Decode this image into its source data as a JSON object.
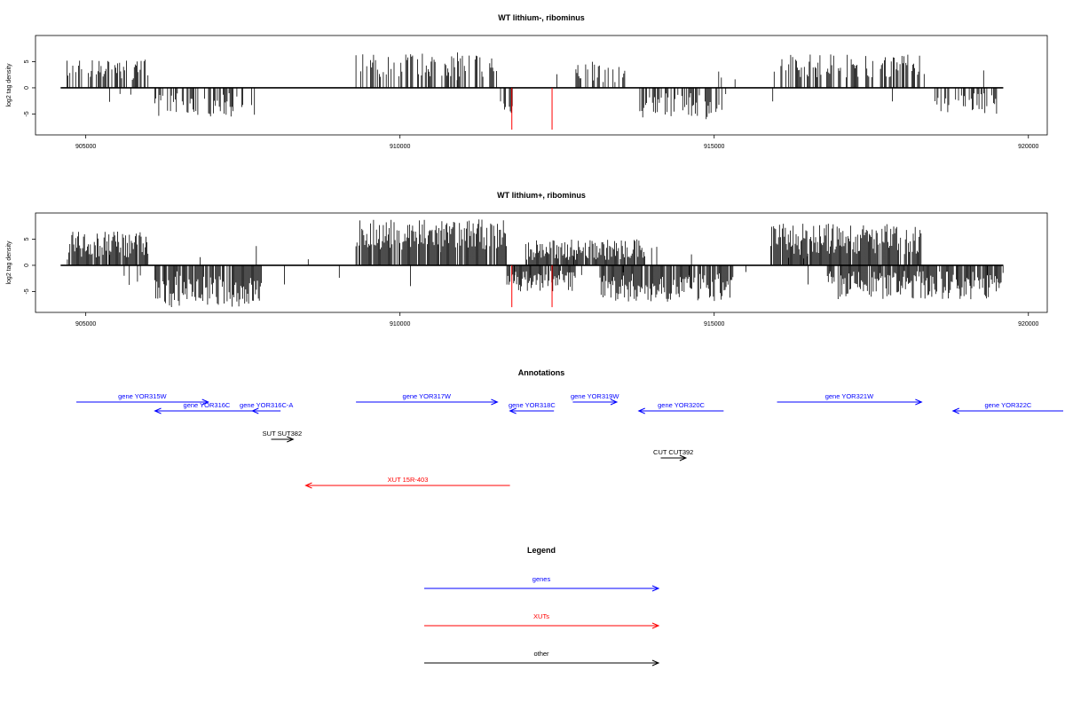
{
  "panels": [
    {
      "title": "WT lithium-, ribominus",
      "ylabel": "log2 tag density",
      "xticks": [
        905000,
        910000,
        915000,
        920000
      ],
      "yticks": [
        5,
        0,
        -5
      ],
      "xlim": [
        904200,
        920300
      ],
      "ylim": [
        -9,
        10
      ],
      "red_spikes": [
        {
          "x": 911780,
          "y": -8.0
        },
        {
          "x": 912420,
          "y": -8.0
        }
      ],
      "profile": [
        {
          "start": 904700,
          "end": 906000,
          "min": 1.5,
          "max": 5.5,
          "dir": 1
        },
        {
          "start": 906100,
          "end": 907700,
          "min": -5.5,
          "max": -1.0,
          "dir": -1
        },
        {
          "start": 909300,
          "end": 911600,
          "min": 2.0,
          "max": 6.8,
          "dir": 1
        },
        {
          "start": 911600,
          "end": 911800,
          "min": -5.0,
          "max": -1.0,
          "dir": -1
        },
        {
          "start": 912800,
          "end": 913600,
          "min": 1.0,
          "max": 5.0,
          "dir": 1
        },
        {
          "start": 913800,
          "end": 915200,
          "min": -6.0,
          "max": -1.0,
          "dir": -1
        },
        {
          "start": 916000,
          "end": 918300,
          "min": 2.0,
          "max": 6.5,
          "dir": 1
        },
        {
          "start": 918500,
          "end": 919500,
          "min": -5.0,
          "max": -1.0,
          "dir": -1
        }
      ],
      "density": 0.55
    },
    {
      "title": "WT lithium+, ribominus",
      "ylabel": "log2 tag density",
      "xticks": [
        905000,
        910000,
        915000,
        920000
      ],
      "yticks": [
        5,
        0,
        -5
      ],
      "xlim": [
        904200,
        920300
      ],
      "ylim": [
        -9,
        10
      ],
      "red_spikes": [
        {
          "x": 911780,
          "y": -8.0
        },
        {
          "x": 912420,
          "y": -8.0
        }
      ],
      "profile": [
        {
          "start": 904700,
          "end": 906000,
          "min": 1.5,
          "max": 6.5,
          "dir": 1
        },
        {
          "start": 906100,
          "end": 907800,
          "min": -8.0,
          "max": -2.0,
          "dir": -1
        },
        {
          "start": 909300,
          "end": 911700,
          "min": 3.0,
          "max": 8.8,
          "dir": 1
        },
        {
          "start": 911700,
          "end": 912800,
          "min": -5.0,
          "max": -1.0,
          "dir": -1
        },
        {
          "start": 912000,
          "end": 913900,
          "min": 1.0,
          "max": 5.0,
          "dir": 1
        },
        {
          "start": 913200,
          "end": 915300,
          "min": -7.0,
          "max": -1.5,
          "dir": -1
        },
        {
          "start": 915900,
          "end": 918300,
          "min": 2.0,
          "max": 8.0,
          "dir": 1
        },
        {
          "start": 916800,
          "end": 919600,
          "min": -6.5,
          "max": -1.0,
          "dir": -1
        }
      ],
      "density": 0.9
    }
  ],
  "annotations": {
    "title": "Annotations",
    "items": [
      {
        "label": "gene YOR315W",
        "start": 904850,
        "end": 906950,
        "strand": "+",
        "type": "gene",
        "row": 0
      },
      {
        "label": "gene YOR316C",
        "start": 906100,
        "end": 907750,
        "strand": "-",
        "type": "gene",
        "row": 1
      },
      {
        "label": "gene YOR316C-A",
        "start": 907650,
        "end": 908100,
        "strand": "-",
        "type": "gene",
        "row": 1
      },
      {
        "label": "gene YOR317W",
        "start": 909300,
        "end": 911550,
        "strand": "+",
        "type": "gene",
        "row": 0
      },
      {
        "label": "gene YOR318C",
        "start": 911750,
        "end": 912450,
        "strand": "-",
        "type": "gene",
        "row": 1
      },
      {
        "label": "gene YOR319W",
        "start": 912750,
        "end": 913450,
        "strand": "+",
        "type": "gene",
        "row": 0
      },
      {
        "label": "gene YOR320C",
        "start": 913800,
        "end": 915150,
        "strand": "-",
        "type": "gene",
        "row": 1
      },
      {
        "label": "gene YOR321W",
        "start": 916000,
        "end": 918300,
        "strand": "+",
        "type": "gene",
        "row": 0
      },
      {
        "label": "gene YOR322C",
        "start": 918800,
        "end": 920600,
        "strand": "-",
        "type": "gene",
        "row": 1
      },
      {
        "label": "SUT SUT382",
        "start": 907950,
        "end": 908300,
        "strand": "+",
        "type": "other",
        "row": 2
      },
      {
        "label": "CUT CUT392",
        "start": 914150,
        "end": 914550,
        "strand": "+",
        "type": "other",
        "row": 3
      },
      {
        "label": "XUT 15R-403",
        "start": 908500,
        "end": 911750,
        "strand": "-",
        "type": "xut",
        "row": 4
      }
    ]
  },
  "legend": {
    "title": "Legend",
    "entries": [
      {
        "label": "genes",
        "color": "#0000ff"
      },
      {
        "label": "XUTs",
        "color": "#ff0000"
      },
      {
        "label": "other",
        "color": "#000000"
      }
    ]
  },
  "colors": {
    "gene": "#0000ff",
    "xut": "#ff0000",
    "other": "#000000",
    "bar": "#000000",
    "spike": "#ff0000"
  },
  "chart_data": [
    {
      "type": "bar",
      "title": "WT lithium-, ribominus",
      "xlabel": "",
      "ylabel": "log2 tag density",
      "xlim": [
        904200,
        920300
      ],
      "ylim": [
        -9,
        10
      ],
      "xticks": [
        905000,
        910000,
        915000,
        920000
      ],
      "yticks": [
        -5,
        0,
        5
      ],
      "series": [
        {
          "name": "",
          "x": [
            904700,
            906100,
            909300,
            912800,
            913800,
            916000,
            918500
          ],
          "values": [
            5.5,
            -5.5,
            6.8,
            5.0,
            -6.0,
            6.5,
            -5.0
          ]
        },
        {
          "name": "",
          "x": [
            911780,
            912420
          ],
          "values": [
            -8.0,
            -8.0
          ]
        }
      ]
    },
    {
      "type": "bar",
      "title": "WT lithium+, ribominus",
      "xlabel": "",
      "ylabel": "log2 tag density",
      "xlim": [
        904200,
        920300
      ],
      "ylim": [
        -9,
        10
      ],
      "xticks": [
        905000,
        910000,
        915000,
        920000
      ],
      "yticks": [
        -5,
        0,
        5
      ],
      "series": [
        {
          "name": "",
          "x": [
            904700,
            906100,
            909300,
            912000,
            913200,
            915900,
            916800
          ],
          "values": [
            6.5,
            -8.0,
            8.8,
            5.0,
            -7.0,
            8.0,
            -6.5
          ]
        },
        {
          "name": "",
          "x": [
            911780,
            912420
          ],
          "values": [
            -8.0,
            -8.0
          ]
        }
      ]
    }
  ]
}
